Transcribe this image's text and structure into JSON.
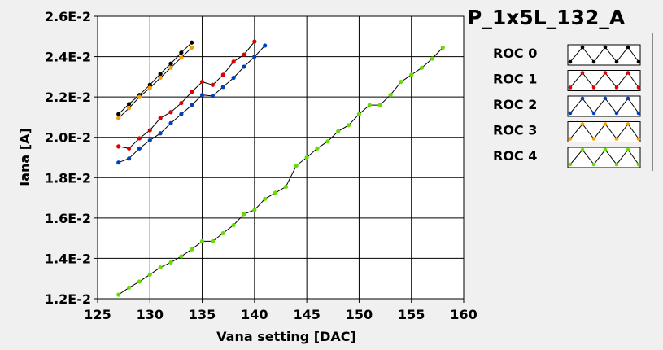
{
  "chart_data": {
    "type": "line",
    "title": "P_1x5L_132_A",
    "xlabel": "Vana setting [DAC]",
    "ylabel": "Iana [A]",
    "xlim": [
      125,
      160
    ],
    "ylim": [
      0.012,
      0.026
    ],
    "x_ticks": [
      125,
      130,
      135,
      140,
      145,
      150,
      155,
      160
    ],
    "y_ticks": [
      0.012,
      0.014,
      0.016,
      0.018,
      0.02,
      0.022,
      0.024,
      0.026
    ],
    "y_tick_labels": [
      "1.2E-2",
      "1.4E-2",
      "1.6E-2",
      "1.8E-2",
      "2.0E-2",
      "2.2E-2",
      "2.4E-2",
      "2.6E-2"
    ],
    "grid": true,
    "legend_position": "right",
    "series": [
      {
        "name": "ROC 0",
        "color": "#000000",
        "x": [
          127,
          128,
          129,
          130,
          131,
          132,
          133,
          134
        ],
        "y": [
          0.02115,
          0.02165,
          0.0221,
          0.0226,
          0.02315,
          0.02365,
          0.0242,
          0.0247
        ]
      },
      {
        "name": "ROC 1",
        "color": "#e00000",
        "x": [
          127,
          128,
          129,
          130,
          131,
          132,
          133,
          134,
          135,
          136,
          137,
          138,
          139,
          140
        ],
        "y": [
          0.01955,
          0.01945,
          0.01995,
          0.02035,
          0.02095,
          0.02125,
          0.0217,
          0.02225,
          0.02275,
          0.0226,
          0.0231,
          0.02375,
          0.0241,
          0.02475
        ]
      },
      {
        "name": "ROC 2",
        "color": "#0040c0",
        "x": [
          127,
          128,
          129,
          130,
          131,
          132,
          133,
          134,
          135,
          136,
          137,
          138,
          139,
          140,
          141
        ],
        "y": [
          0.01875,
          0.01895,
          0.01945,
          0.01985,
          0.0202,
          0.0207,
          0.02115,
          0.0216,
          0.0221,
          0.02205,
          0.0225,
          0.02295,
          0.0235,
          0.024,
          0.02455
        ]
      },
      {
        "name": "ROC 3",
        "color": "#ff9900",
        "x": [
          127,
          128,
          129,
          130,
          131,
          132,
          133,
          134
        ],
        "y": [
          0.02095,
          0.02145,
          0.022,
          0.02245,
          0.02295,
          0.02345,
          0.02395,
          0.02445
        ]
      },
      {
        "name": "ROC 4",
        "color": "#66dd00",
        "x": [
          127,
          128,
          129,
          130,
          131,
          132,
          133,
          134,
          135,
          136,
          137,
          138,
          139,
          140,
          141,
          142,
          143,
          144,
          145,
          146,
          147,
          148,
          149,
          150,
          151,
          152,
          153,
          154,
          155,
          156,
          157,
          158
        ],
        "y": [
          0.0122,
          0.01255,
          0.01285,
          0.0132,
          0.01355,
          0.0138,
          0.0141,
          0.01445,
          0.01485,
          0.01485,
          0.01525,
          0.01565,
          0.0162,
          0.0164,
          0.01695,
          0.01725,
          0.01755,
          0.0186,
          0.019,
          0.01945,
          0.0198,
          0.0203,
          0.0206,
          0.02115,
          0.0216,
          0.0216,
          0.0221,
          0.02275,
          0.0231,
          0.02345,
          0.0239,
          0.02445
        ]
      }
    ]
  }
}
